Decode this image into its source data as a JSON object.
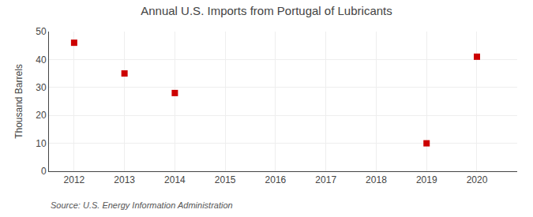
{
  "chart_data": {
    "type": "scatter",
    "title": "Annual U.S. Imports from Portugal of Lubricants",
    "ylabel": "Thousand Barrels",
    "annotations": [
      "Source: U.S. Energy Information Administration"
    ],
    "x": [
      2012,
      2013,
      2014,
      2019,
      2020
    ],
    "values": [
      46,
      35,
      28,
      10,
      41
    ],
    "xlim": [
      2011.5,
      2020.8
    ],
    "xticks": [
      2012,
      2013,
      2014,
      2015,
      2016,
      2017,
      2018,
      2019,
      2020
    ],
    "ylim": [
      0,
      50
    ],
    "yticks": [
      0,
      10,
      20,
      30,
      40,
      50
    ],
    "color": "#cc0000",
    "marker": "square",
    "grid": true
  }
}
